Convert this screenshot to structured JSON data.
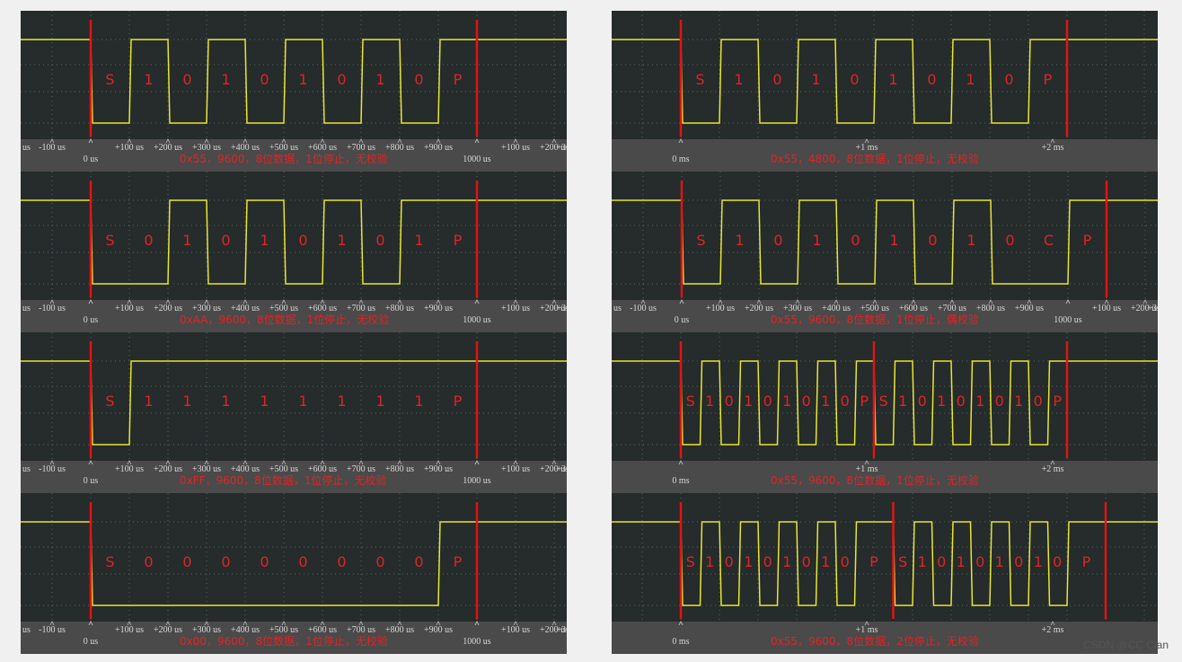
{
  "panels": [
    {
      "bits": [
        "S",
        "1",
        "0",
        "1",
        "0",
        "1",
        "0",
        "1",
        "0",
        "P"
      ],
      "ticks_top": [
        "us",
        "-100 us",
        null,
        "+100 us",
        "+200 us",
        "+300 us",
        "+400 us",
        "+500 us",
        "+600 us",
        "+700 us",
        "+800 us",
        "+900 us",
        null,
        "+100 us",
        "+200 us",
        "+3"
      ],
      "ticks_bottom": [
        null,
        null,
        "0 us",
        null,
        null,
        null,
        null,
        null,
        null,
        null,
        null,
        null,
        "1000 us",
        null,
        null,
        null
      ],
      "caption": "0x55，9600，8位数据，1位停止，无校验"
    },
    {
      "bits": [
        "S",
        "0",
        "1",
        "0",
        "1",
        "0",
        "1",
        "0",
        "1",
        "P"
      ],
      "ticks_top": [
        "us",
        "-100 us",
        null,
        "+100 us",
        "+200 us",
        "+300 us",
        "+400 us",
        "+500 us",
        "+600 us",
        "+700 us",
        "+800 us",
        "+900 us",
        null,
        "+100 us",
        "+200 us",
        "+3"
      ],
      "ticks_bottom": [
        null,
        null,
        "0 us",
        null,
        null,
        null,
        null,
        null,
        null,
        null,
        null,
        null,
        "1000 us",
        null,
        null,
        null
      ],
      "caption": "0xAA，9600，8位数据，1位停止，无校验"
    },
    {
      "bits": [
        "S",
        "1",
        "1",
        "1",
        "1",
        "1",
        "1",
        "1",
        "1",
        "P"
      ],
      "ticks_top": [
        "us",
        "-100 us",
        null,
        "+100 us",
        "+200 us",
        "+300 us",
        "+400 us",
        "+500 us",
        "+600 us",
        "+700 us",
        "+800 us",
        "+900 us",
        null,
        "+100 us",
        "+200 us",
        "+3"
      ],
      "ticks_bottom": [
        null,
        null,
        "0 us",
        null,
        null,
        null,
        null,
        null,
        null,
        null,
        null,
        null,
        "1000 us",
        null,
        null,
        null
      ],
      "caption": "0xFF，9600，8位数据，1位停止，无校验"
    },
    {
      "bits": [
        "S",
        "0",
        "0",
        "0",
        "0",
        "0",
        "0",
        "0",
        "0",
        "P"
      ],
      "ticks_top": [
        "us",
        "-100 us",
        null,
        "+100 us",
        "+200 us",
        "+300 us",
        "+400 us",
        "+500 us",
        "+600 us",
        "+700 us",
        "+800 us",
        "+900 us",
        null,
        "+100 us",
        "+200 us",
        "+3"
      ],
      "ticks_bottom": [
        null,
        null,
        "0 us",
        null,
        null,
        null,
        null,
        null,
        null,
        null,
        null,
        null,
        "1000 us",
        null,
        null,
        null
      ],
      "caption": "0x00，9600，8位数据，1位停止，无校验"
    },
    {
      "bits": [
        "S",
        "1",
        "0",
        "1",
        "0",
        "1",
        "0",
        "1",
        "0",
        "P"
      ],
      "ticks_top": [
        null,
        "+1 ms",
        "+2 ms"
      ],
      "ticks_bottom": [
        "0 ms",
        null,
        null
      ],
      "caption": "0x55，4800，8位数据，1位停止，无校验"
    },
    {
      "bits": [
        "S",
        "1",
        "0",
        "1",
        "0",
        "1",
        "0",
        "1",
        "0",
        "C",
        "P"
      ],
      "ticks_top": [
        "us",
        "-100 us",
        null,
        "+100 us",
        "+200 us",
        "+300 us",
        "+400 us",
        "+500 us",
        "+600 us",
        "+700 us",
        "+800 us",
        "+900 us",
        null,
        "+100 us",
        "+200 us",
        "+3"
      ],
      "ticks_bottom": [
        null,
        null,
        "0 us",
        null,
        null,
        null,
        null,
        null,
        null,
        null,
        null,
        null,
        "1000 us",
        null,
        null,
        null
      ],
      "caption": "0x55，9600，8位数据，1位停止，偶校验"
    },
    {
      "bits": [
        "S",
        "1",
        "0",
        "1",
        "0",
        "1",
        "0",
        "1",
        "0",
        "P",
        "S",
        "1",
        "0",
        "1",
        "0",
        "1",
        "0",
        "1",
        "0",
        "P"
      ],
      "ticks_top": [
        null,
        "+1 ms",
        "+2 ms"
      ],
      "ticks_bottom": [
        "0 ms",
        null,
        null
      ],
      "caption": "0x55，9600，8位数据，1位停止，无校验"
    },
    {
      "bits": [
        "S",
        "1",
        "0",
        "1",
        "0",
        "1",
        "0",
        "1",
        "0",
        "P",
        "S",
        "1",
        "0",
        "1",
        "0",
        "1",
        "0",
        "1",
        "0",
        "P"
      ],
      "ticks_top": [
        null,
        "+1 ms",
        "+2 ms"
      ],
      "ticks_bottom": [
        "0 ms",
        null,
        null
      ],
      "caption": "0x55，9600，8位数据，2位停止，无校验"
    }
  ],
  "watermark": "CSDN @CC Cian"
}
